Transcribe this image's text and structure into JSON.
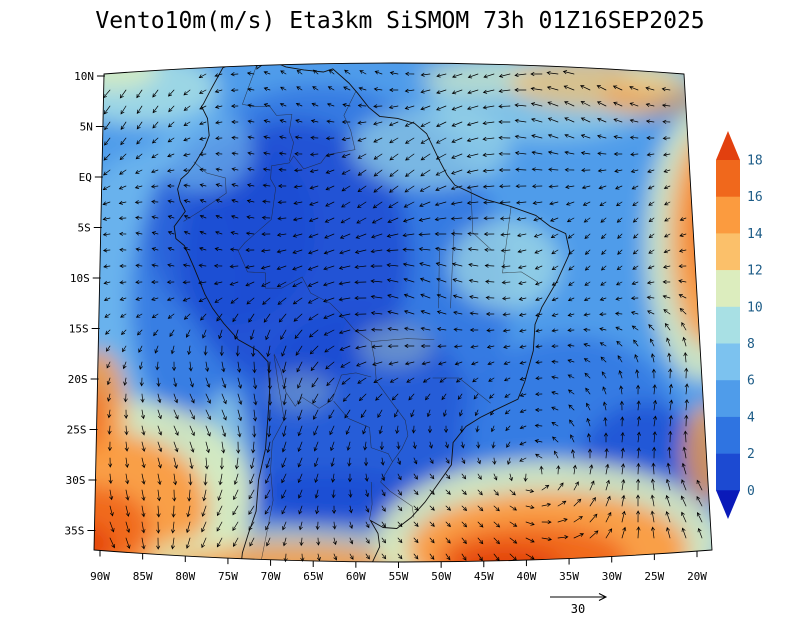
{
  "title": "Vento10m(m/s) Eta3km SiSMOM 73h 01Z16SEP2025",
  "map": {
    "lat_labels": [
      "10N",
      "5N",
      "EQ",
      "5S",
      "10S",
      "15S",
      "20S",
      "25S",
      "30S",
      "35S"
    ],
    "lat_values_deg": [
      10,
      5,
      0,
      -5,
      -10,
      -15,
      -20,
      -25,
      -30,
      -35
    ],
    "lon_labels": [
      "90W",
      "85W",
      "80W",
      "75W",
      "70W",
      "65W",
      "60W",
      "55W",
      "50W",
      "45W",
      "40W",
      "35W",
      "30W",
      "25W",
      "20W"
    ],
    "lon_values_deg": [
      -90,
      -85,
      -80,
      -75,
      -70,
      -65,
      -60,
      -55,
      -50,
      -45,
      -40,
      -35,
      -30,
      -25,
      -20
    ]
  },
  "colorbar": {
    "tick_labels": [
      "18",
      "16",
      "14",
      "12",
      "10",
      "8",
      "6",
      "4",
      "2",
      "0"
    ],
    "colors_bottom_to_top": [
      "#0a1ab9",
      "#1c4ad2",
      "#2f74e1",
      "#4f9cea",
      "#7cc2ef",
      "#a8e0e4",
      "#dcedbe",
      "#fbc06a",
      "#fb9b3f",
      "#f0681c",
      "#e2400f"
    ],
    "label_color": "#1d5c87"
  },
  "reference_vector": {
    "label": "30"
  },
  "colors": {
    "background": "#ffffff",
    "vector_color": "#000000",
    "coastline_color": "#111111",
    "axis_text_color": "#000000"
  }
}
